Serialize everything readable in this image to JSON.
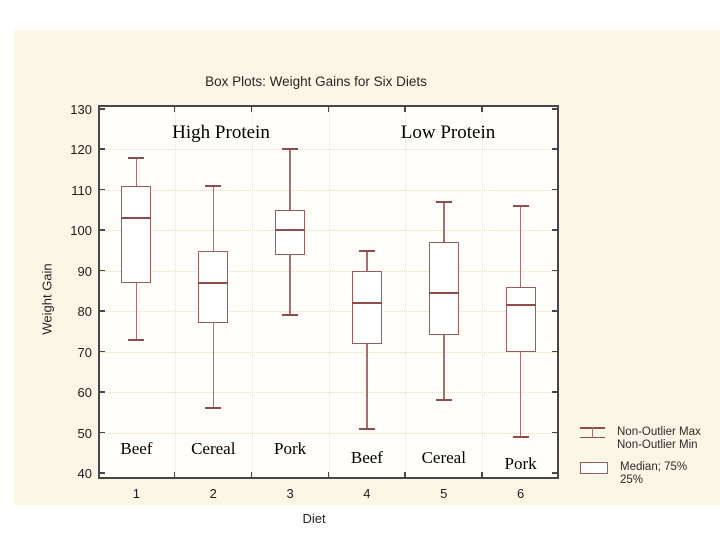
{
  "title": "Box Plots: Weight Gains for Six Diets",
  "chart_data": {
    "type": "boxplot",
    "title": "Box Plots: Weight Gains for Six Diets",
    "xlabel": "Diet",
    "ylabel": "Weight Gain",
    "ylim": [
      40,
      130
    ],
    "yticks": [
      40,
      50,
      60,
      70,
      80,
      90,
      100,
      110,
      120,
      130
    ],
    "grid": true,
    "group_annotations": [
      {
        "text": "High Protein"
      },
      {
        "text": "Low Protein"
      }
    ],
    "boxes": [
      {
        "diet": "1",
        "label": "Beef",
        "group": "High Protein",
        "min": 73,
        "q1": 87,
        "median": 103,
        "q3": 111,
        "max": 118
      },
      {
        "diet": "2",
        "label": "Cereal",
        "group": "High Protein",
        "min": 56,
        "q1": 77,
        "median": 87,
        "q3": 95,
        "max": 111
      },
      {
        "diet": "3",
        "label": "Pork",
        "group": "High Protein",
        "min": 79,
        "q1": 94,
        "median": 100,
        "q3": 105,
        "max": 120
      },
      {
        "diet": "4",
        "label": "Beef",
        "group": "Low Protein",
        "min": 51,
        "q1": 72,
        "median": 82,
        "q3": 90,
        "max": 95
      },
      {
        "diet": "5",
        "label": "Cereal",
        "group": "Low Protein",
        "min": 58,
        "q1": 74,
        "median": 84.5,
        "q3": 97,
        "max": 107
      },
      {
        "diet": "6",
        "label": "Pork",
        "group": "Low Protein",
        "min": 49,
        "q1": 70,
        "median": 81.5,
        "q3": 86,
        "max": 106
      }
    ],
    "legend": [
      {
        "symbol": "whisker",
        "lines": [
          "Non-Outlier Max",
          "Non-Outlier Min"
        ]
      },
      {
        "symbol": "box",
        "lines": [
          "Median; 75%",
          "25%"
        ]
      }
    ],
    "colors": {
      "panel_bg": "#FCF6E7",
      "plot_bg": "#FFFEFB",
      "box_stroke": "#9D5C5C",
      "whisker": "#A76F6F",
      "median": "#8E4C4C",
      "frame": "#474747",
      "grid": "#E7DACA"
    }
  }
}
